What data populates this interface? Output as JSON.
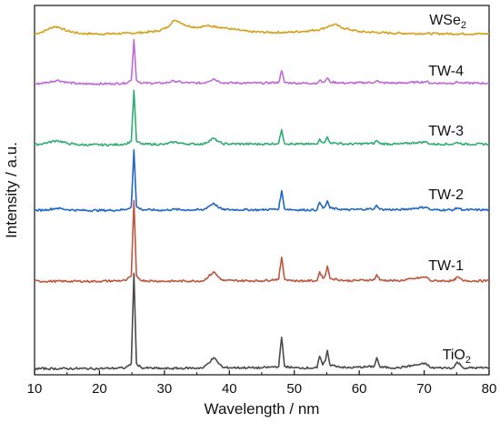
{
  "chart_data": {
    "type": "line",
    "xlabel": "Wavelength / nm",
    "ylabel": "Intensity / a.u.",
    "xlim": [
      10,
      80
    ],
    "x_ticks": [
      10,
      20,
      30,
      40,
      50,
      60,
      70,
      80
    ],
    "y_ticks_shown": false,
    "grid": false,
    "legend": "labels beside each curve (right side)",
    "series": [
      {
        "name": "WSe2",
        "name_base": "WSe",
        "name_sub": "2",
        "color": "#d4a21a",
        "points": [
          [
            10,
            0.5
          ],
          [
            11,
            1.5
          ],
          [
            12,
            3.5
          ],
          [
            13,
            5.5
          ],
          [
            13.8,
            5.0
          ],
          [
            15,
            2.5
          ],
          [
            17,
            0.8
          ],
          [
            20,
            0.4
          ],
          [
            24,
            0.8
          ],
          [
            27,
            1.5
          ],
          [
            29,
            2.5
          ],
          [
            30.5,
            5.0
          ],
          [
            31.3,
            9.5
          ],
          [
            32.2,
            9.0
          ],
          [
            33.5,
            6.0
          ],
          [
            35,
            5.0
          ],
          [
            36.5,
            6.0
          ],
          [
            38,
            5.5
          ],
          [
            40,
            4.0
          ],
          [
            43,
            2.0
          ],
          [
            46,
            1.5
          ],
          [
            49,
            1.5
          ],
          [
            52,
            2.5
          ],
          [
            54,
            3.5
          ],
          [
            55.5,
            6.0
          ],
          [
            56.2,
            7.0
          ],
          [
            57.5,
            4.5
          ],
          [
            60,
            2.0
          ],
          [
            65,
            1.0
          ],
          [
            70,
            0.7
          ],
          [
            75,
            0.5
          ],
          [
            80,
            0.5
          ]
        ]
      },
      {
        "name": "TW-4",
        "name_base": "TW-4",
        "name_sub": "",
        "color": "#c06ad6",
        "points": [
          [
            10,
            0.3
          ],
          [
            12,
            1.5
          ],
          [
            13.5,
            3.0
          ],
          [
            15,
            1.5
          ],
          [
            17,
            0.5
          ],
          [
            22,
            0.6
          ],
          [
            24,
            1.0
          ],
          [
            24.9,
            3.0
          ],
          [
            25.3,
            31
          ],
          [
            25.7,
            3.0
          ],
          [
            26.5,
            1.0
          ],
          [
            30,
            1.0
          ],
          [
            31.5,
            2.5
          ],
          [
            33,
            1.3
          ],
          [
            36,
            1.0
          ],
          [
            37.6,
            4.0
          ],
          [
            38.2,
            2.5
          ],
          [
            39,
            1.2
          ],
          [
            45,
            1.0
          ],
          [
            47.6,
            1.5
          ],
          [
            48.05,
            9.5
          ],
          [
            48.5,
            1.5
          ],
          [
            50,
            1.0
          ],
          [
            53.5,
            1.0
          ],
          [
            53.9,
            3.0
          ],
          [
            54.4,
            1.5
          ],
          [
            54.8,
            2.5
          ],
          [
            55.1,
            4.5
          ],
          [
            55.5,
            1.8
          ],
          [
            58,
            1.0
          ],
          [
            62.3,
            1.5
          ],
          [
            62.7,
            2.8
          ],
          [
            63.2,
            1.3
          ],
          [
            66,
            1.0
          ],
          [
            68.8,
            1.6
          ],
          [
            70.3,
            2.0
          ],
          [
            71,
            1.0
          ],
          [
            74.5,
            1.0
          ],
          [
            75.1,
            1.8
          ],
          [
            76,
            1.0
          ],
          [
            80,
            1.0
          ]
        ]
      },
      {
        "name": "TW-3",
        "name_base": "TW-3",
        "name_sub": "",
        "color": "#2eae70",
        "points": [
          [
            10,
            0.3
          ],
          [
            12,
            2.0
          ],
          [
            13.5,
            3.5
          ],
          [
            15,
            1.5
          ],
          [
            17,
            0.5
          ],
          [
            22,
            0.5
          ],
          [
            24,
            1.0
          ],
          [
            24.9,
            3.0
          ],
          [
            25.3,
            38
          ],
          [
            25.7,
            3.0
          ],
          [
            26.5,
            1.0
          ],
          [
            30,
            0.8
          ],
          [
            31.5,
            2.5
          ],
          [
            33,
            1.2
          ],
          [
            36,
            1.0
          ],
          [
            37.6,
            5.0
          ],
          [
            38.2,
            3.0
          ],
          [
            39,
            1.2
          ],
          [
            45,
            1.0
          ],
          [
            47.6,
            1.5
          ],
          [
            48.05,
            11
          ],
          [
            48.5,
            1.5
          ],
          [
            50,
            1.0
          ],
          [
            53.5,
            1.0
          ],
          [
            53.9,
            4.5
          ],
          [
            54.4,
            2.0
          ],
          [
            54.8,
            3.0
          ],
          [
            55.1,
            6.0
          ],
          [
            55.5,
            2.0
          ],
          [
            58,
            1.0
          ],
          [
            62.3,
            1.5
          ],
          [
            62.7,
            3.5
          ],
          [
            63.2,
            1.3
          ],
          [
            66,
            1.0
          ],
          [
            68.8,
            2.0
          ],
          [
            70.3,
            2.5
          ],
          [
            71,
            1.0
          ],
          [
            74.5,
            1.0
          ],
          [
            75.1,
            2.2
          ],
          [
            76,
            1.0
          ],
          [
            80,
            1.0
          ]
        ]
      },
      {
        "name": "TW-2",
        "name_base": "TW-2",
        "name_sub": "",
        "color": "#1f66c8",
        "points": [
          [
            10,
            0.3
          ],
          [
            12,
            1.0
          ],
          [
            13.5,
            2.0
          ],
          [
            15,
            1.0
          ],
          [
            17,
            0.5
          ],
          [
            22,
            0.5
          ],
          [
            24,
            1.0
          ],
          [
            24.9,
            3.0
          ],
          [
            25.3,
            42
          ],
          [
            25.7,
            3.0
          ],
          [
            26.5,
            1.0
          ],
          [
            30,
            0.5
          ],
          [
            31.5,
            1.2
          ],
          [
            33,
            0.8
          ],
          [
            36,
            0.8
          ],
          [
            37.6,
            5.5
          ],
          [
            38.2,
            3.0
          ],
          [
            39,
            1.0
          ],
          [
            45,
            0.8
          ],
          [
            47.6,
            1.5
          ],
          [
            48.05,
            14
          ],
          [
            48.5,
            1.5
          ],
          [
            50,
            0.8
          ],
          [
            53.5,
            0.8
          ],
          [
            53.9,
            6.0
          ],
          [
            54.4,
            2.0
          ],
          [
            54.8,
            3.5
          ],
          [
            55.1,
            7.0
          ],
          [
            55.5,
            2.0
          ],
          [
            58,
            0.8
          ],
          [
            62.3,
            1.5
          ],
          [
            62.7,
            4.0
          ],
          [
            63.2,
            1.2
          ],
          [
            66,
            0.8
          ],
          [
            68.8,
            2.0
          ],
          [
            70.3,
            2.8
          ],
          [
            71,
            0.8
          ],
          [
            74.5,
            0.8
          ],
          [
            75.1,
            2.2
          ],
          [
            76,
            0.8
          ],
          [
            80,
            0.8
          ]
        ]
      },
      {
        "name": "TW-1",
        "name_base": "TW-1",
        "name_sub": "",
        "color": "#c0553e",
        "points": [
          [
            10,
            0.5
          ],
          [
            20,
            0.5
          ],
          [
            24,
            1.0
          ],
          [
            24.9,
            4.0
          ],
          [
            25.3,
            56
          ],
          [
            25.7,
            4.0
          ],
          [
            26.5,
            1.0
          ],
          [
            30,
            0.5
          ],
          [
            36,
            0.8
          ],
          [
            37.6,
            7.0
          ],
          [
            38.2,
            4.0
          ],
          [
            39,
            1.0
          ],
          [
            45,
            0.8
          ],
          [
            47.6,
            2.0
          ],
          [
            48.05,
            17
          ],
          [
            48.5,
            2.0
          ],
          [
            50,
            0.8
          ],
          [
            53.5,
            0.8
          ],
          [
            53.9,
            7.0
          ],
          [
            54.4,
            2.5
          ],
          [
            54.8,
            5.0
          ],
          [
            55.1,
            11
          ],
          [
            55.5,
            2.5
          ],
          [
            58,
            0.8
          ],
          [
            62.3,
            1.5
          ],
          [
            62.7,
            5.0
          ],
          [
            63.2,
            1.3
          ],
          [
            66,
            0.8
          ],
          [
            68.8,
            2.5
          ],
          [
            70.3,
            3.5
          ],
          [
            71,
            0.8
          ],
          [
            74.5,
            0.8
          ],
          [
            75.1,
            3.5
          ],
          [
            76,
            0.8
          ],
          [
            80,
            0.8
          ]
        ]
      },
      {
        "name": "TiO2",
        "name_base": "TiO",
        "name_sub": "2",
        "color": "#4a4a4a",
        "points": [
          [
            10,
            0.5
          ],
          [
            20,
            0.5
          ],
          [
            24,
            1.0
          ],
          [
            24.9,
            4.0
          ],
          [
            25.3,
            66
          ],
          [
            25.7,
            4.0
          ],
          [
            26.5,
            1.0
          ],
          [
            30,
            0.5
          ],
          [
            36,
            1.0
          ],
          [
            37.6,
            8.0
          ],
          [
            38.2,
            5.0
          ],
          [
            39,
            1.2
          ],
          [
            45,
            1.0
          ],
          [
            47.6,
            2.0
          ],
          [
            48.05,
            22
          ],
          [
            48.5,
            2.0
          ],
          [
            50,
            1.0
          ],
          [
            53.5,
            1.0
          ],
          [
            53.9,
            9.0
          ],
          [
            54.4,
            3.0
          ],
          [
            54.8,
            6.0
          ],
          [
            55.1,
            13
          ],
          [
            55.5,
            3.0
          ],
          [
            58,
            1.0
          ],
          [
            62.3,
            2.0
          ],
          [
            62.7,
            8.0
          ],
          [
            63.2,
            1.5
          ],
          [
            66,
            1.0
          ],
          [
            68.8,
            3.0
          ],
          [
            70.3,
            4.0
          ],
          [
            71,
            1.0
          ],
          [
            74.5,
            1.0
          ],
          [
            75.1,
            5.0
          ],
          [
            75.6,
            3.0
          ],
          [
            76,
            1.0
          ],
          [
            80,
            1.0
          ]
        ]
      }
    ]
  }
}
